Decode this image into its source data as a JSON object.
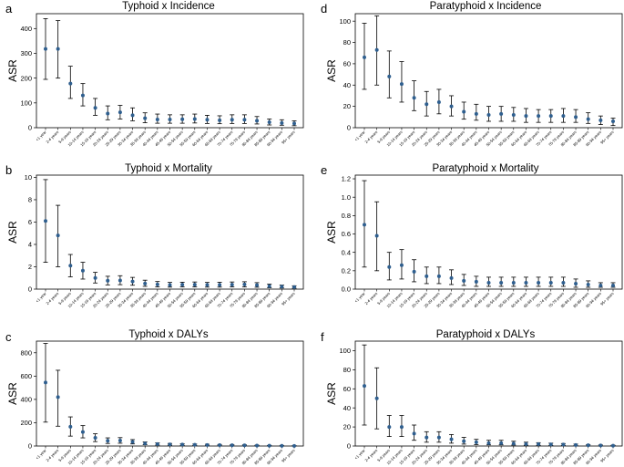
{
  "figure": {
    "ylabel": "ASR",
    "age_groups": [
      "<1 year",
      "2-4 years",
      "5-9 years",
      "10-14 years",
      "15-19 years",
      "20-24 years",
      "25-29 years",
      "30-34 years",
      "35-39 years",
      "40-44 years",
      "45-49 years",
      "50-54 years",
      "55-59 years",
      "60-64 years",
      "65-69 years",
      "70-74 years",
      "75-79 years",
      "80-84 years",
      "85-89 years",
      "90-94 years",
      "95+ years"
    ],
    "marker_color": "#2f5f8f",
    "errorbar_color": "#000000"
  },
  "chart_data": [
    {
      "type": "scatter",
      "panel": "a",
      "title": "Typhoid x Incidence",
      "ylabel": "ASR",
      "ylim": [
        0,
        460
      ],
      "yticks": [
        0,
        100,
        200,
        300,
        400
      ],
      "values": [
        318,
        318,
        178,
        130,
        80,
        57,
        62,
        50,
        38,
        33,
        33,
        34,
        35,
        32,
        30,
        32,
        32,
        28,
        22,
        19,
        17
      ],
      "lower": [
        195,
        200,
        118,
        88,
        50,
        32,
        35,
        28,
        20,
        18,
        18,
        18,
        19,
        17,
        16,
        17,
        17,
        15,
        11,
        10,
        8
      ],
      "upper": [
        440,
        432,
        248,
        178,
        118,
        88,
        90,
        80,
        60,
        55,
        52,
        52,
        55,
        50,
        48,
        52,
        52,
        45,
        35,
        32,
        28
      ]
    },
    {
      "type": "scatter",
      "panel": "b",
      "title": "Typhoid x Mortality",
      "ylabel": "ASR",
      "ylim": [
        0,
        10.2
      ],
      "yticks": [
        0,
        2,
        4,
        6,
        8,
        10
      ],
      "values": [
        6.1,
        4.8,
        2.1,
        1.65,
        1.0,
        0.75,
        0.78,
        0.68,
        0.5,
        0.42,
        0.37,
        0.4,
        0.4,
        0.38,
        0.38,
        0.4,
        0.42,
        0.36,
        0.27,
        0.22,
        0.18
      ],
      "lower": [
        2.4,
        2.0,
        1.1,
        0.9,
        0.55,
        0.38,
        0.4,
        0.35,
        0.25,
        0.2,
        0.18,
        0.2,
        0.2,
        0.18,
        0.18,
        0.2,
        0.2,
        0.17,
        0.12,
        0.1,
        0.08
      ],
      "upper": [
        9.8,
        7.5,
        3.1,
        2.4,
        1.5,
        1.15,
        1.2,
        1.05,
        0.8,
        0.68,
        0.6,
        0.62,
        0.64,
        0.6,
        0.62,
        0.64,
        0.66,
        0.58,
        0.45,
        0.36,
        0.3
      ]
    },
    {
      "type": "scatter",
      "panel": "c",
      "title": "Typhoid x DALYs",
      "ylabel": "ASR",
      "ylim": [
        0,
        900
      ],
      "yticks": [
        0,
        200,
        400,
        600,
        800
      ],
      "values": [
        545,
        420,
        165,
        120,
        70,
        45,
        47,
        35,
        22,
        17,
        14,
        13,
        11,
        9,
        8,
        7,
        6,
        4,
        3,
        2,
        1
      ],
      "lower": [
        205,
        170,
        85,
        70,
        38,
        22,
        24,
        18,
        11,
        8,
        7,
        6,
        5,
        4,
        4,
        3,
        3,
        2,
        1,
        1,
        0
      ],
      "upper": [
        880,
        650,
        250,
        175,
        105,
        70,
        72,
        55,
        35,
        27,
        22,
        20,
        17,
        15,
        13,
        11,
        10,
        7,
        5,
        4,
        3
      ]
    },
    {
      "type": "scatter",
      "panel": "d",
      "title": "Paratyphoid x Incidence",
      "ylabel": "ASR",
      "ylim": [
        0,
        107
      ],
      "yticks": [
        0,
        20,
        40,
        60,
        80,
        100
      ],
      "values": [
        66,
        73,
        48,
        41,
        28,
        22,
        24,
        20,
        15,
        13,
        12,
        13,
        12,
        11,
        11,
        11,
        11,
        10,
        8,
        7,
        6
      ],
      "lower": [
        36,
        40,
        28,
        24,
        16,
        11,
        13,
        11,
        8,
        7,
        6,
        6,
        6,
        5,
        5,
        5,
        5,
        5,
        4,
        3,
        2
      ],
      "upper": [
        98,
        105,
        72,
        62,
        44,
        34,
        36,
        30,
        24,
        22,
        20,
        20,
        19,
        18,
        17,
        17,
        18,
        17,
        14,
        11,
        9
      ]
    },
    {
      "type": "scatter",
      "panel": "e",
      "title": "Paratyphoid x Mortality",
      "ylabel": "ASR",
      "ylim": [
        0,
        1.24
      ],
      "yticks": [
        0.0,
        0.2,
        0.4,
        0.6,
        0.8,
        1.0,
        1.2
      ],
      "values": [
        0.7,
        0.58,
        0.24,
        0.26,
        0.19,
        0.14,
        0.14,
        0.12,
        0.09,
        0.08,
        0.07,
        0.07,
        0.07,
        0.07,
        0.07,
        0.07,
        0.07,
        0.06,
        0.05,
        0.04,
        0.04
      ],
      "lower": [
        0.24,
        0.2,
        0.1,
        0.11,
        0.08,
        0.06,
        0.06,
        0.05,
        0.04,
        0.03,
        0.03,
        0.03,
        0.03,
        0.03,
        0.03,
        0.03,
        0.03,
        0.02,
        0.02,
        0.02,
        0.02
      ],
      "upper": [
        1.18,
        0.95,
        0.4,
        0.43,
        0.32,
        0.24,
        0.24,
        0.21,
        0.16,
        0.14,
        0.13,
        0.13,
        0.13,
        0.13,
        0.13,
        0.13,
        0.13,
        0.11,
        0.09,
        0.07,
        0.07
      ]
    },
    {
      "type": "scatter",
      "panel": "f",
      "title": "Paratyphoid x DALYs",
      "ylabel": "ASR",
      "ylim": [
        0,
        110
      ],
      "yticks": [
        0,
        20,
        40,
        60,
        80,
        100
      ],
      "values": [
        63,
        50,
        20,
        20,
        13,
        9,
        9,
        7,
        5,
        4,
        3,
        3,
        2.5,
        2,
        2,
        1.7,
        1.5,
        1.1,
        0.8,
        0.6,
        0.4
      ],
      "lower": [
        22,
        18,
        10,
        10,
        6,
        4,
        4,
        3,
        2,
        1.5,
        1.2,
        1.2,
        1,
        0.8,
        0.7,
        0.6,
        0.5,
        0.4,
        0.3,
        0.2,
        0.1
      ],
      "upper": [
        106,
        82,
        32,
        32,
        22,
        15,
        15,
        12,
        9,
        7,
        6,
        6,
        5,
        4,
        3.5,
        3,
        2.6,
        2,
        1.5,
        1.1,
        0.8
      ]
    }
  ]
}
